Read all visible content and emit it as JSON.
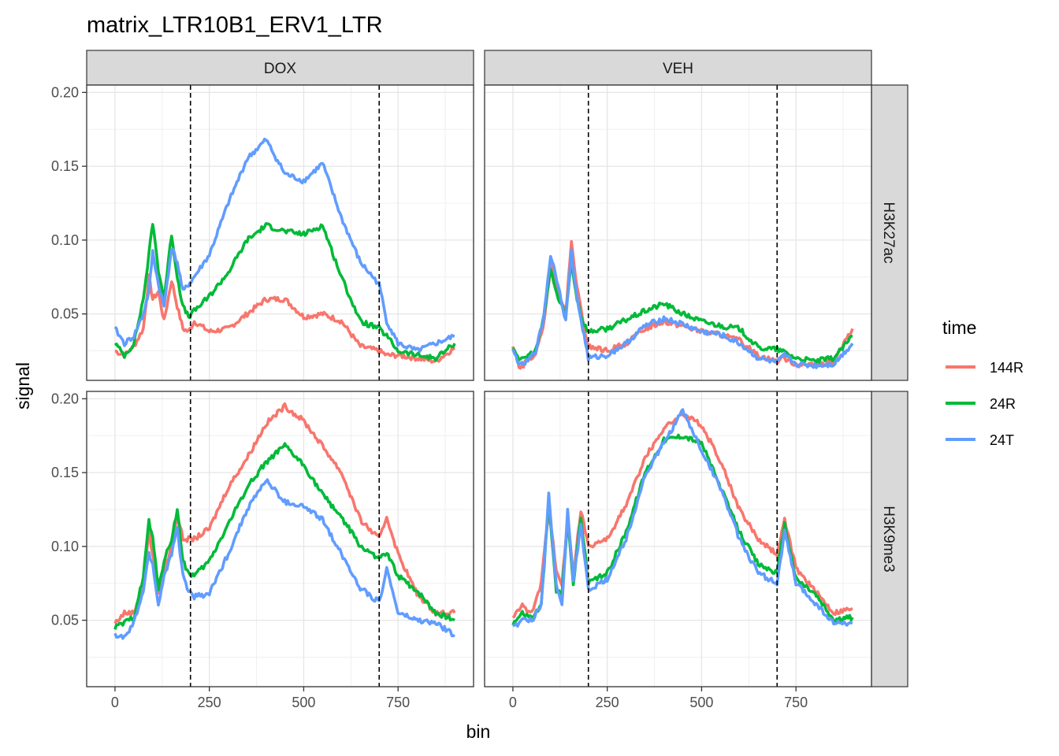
{
  "title": "matrix_LTR10B1_ERV1_LTR",
  "chart_data": {
    "type": "line",
    "title": "matrix_LTR10B1_ERV1_LTR",
    "xlabel": "bin",
    "ylabel": "signal",
    "xlim": [
      -75,
      950
    ],
    "ylim": [
      0.005,
      0.205
    ],
    "x_ticks": [
      0,
      250,
      500,
      750
    ],
    "y_ticks": [
      0.05,
      0.1,
      0.15,
      0.2
    ],
    "y_tick_labels": [
      "0.05",
      "0.10",
      "0.15",
      "0.20"
    ],
    "vlines": [
      200,
      700
    ],
    "grid": true,
    "legend": {
      "title": "time",
      "position": "right"
    },
    "columns": [
      "DOX",
      "VEH"
    ],
    "rows": [
      "H3K27ac",
      "H3K9me3"
    ],
    "series_colors": {
      "144R": "#F8766D",
      "24R": "#00BA38",
      "24T": "#619CFF"
    },
    "panels": [
      {
        "column": "DOX",
        "row": "H3K27ac",
        "series": [
          {
            "name": "144R",
            "x": [
              0,
              25,
              50,
              75,
              90,
              100,
              115,
              130,
              150,
              165,
              180,
              195,
              210,
              250,
              300,
              350,
              400,
              450,
              500,
              550,
              600,
              650,
              700,
              720,
              750,
              800,
              850,
              900
            ],
            "y": [
              0.025,
              0.022,
              0.028,
              0.04,
              0.075,
              0.06,
              0.065,
              0.045,
              0.073,
              0.055,
              0.04,
              0.038,
              0.045,
              0.038,
              0.04,
              0.05,
              0.06,
              0.06,
              0.048,
              0.05,
              0.045,
              0.028,
              0.025,
              0.022,
              0.022,
              0.02,
              0.018,
              0.027
            ]
          },
          {
            "name": "24R",
            "x": [
              0,
              25,
              50,
              75,
              90,
              100,
              115,
              130,
              150,
              165,
              180,
              195,
              210,
              250,
              300,
              350,
              400,
              450,
              500,
              550,
              600,
              650,
              700,
              720,
              750,
              800,
              850,
              900
            ],
            "y": [
              0.03,
              0.022,
              0.03,
              0.06,
              0.09,
              0.112,
              0.08,
              0.06,
              0.104,
              0.075,
              0.055,
              0.048,
              0.052,
              0.062,
              0.078,
              0.1,
              0.11,
              0.106,
              0.104,
              0.11,
              0.075,
              0.045,
              0.04,
              0.035,
              0.025,
              0.022,
              0.02,
              0.03
            ]
          },
          {
            "name": "24T",
            "x": [
              0,
              25,
              50,
              75,
              90,
              100,
              115,
              130,
              150,
              165,
              180,
              195,
              210,
              250,
              300,
              350,
              400,
              450,
              500,
              550,
              600,
              650,
              700,
              720,
              750,
              800,
              850,
              900
            ],
            "y": [
              0.04,
              0.03,
              0.035,
              0.05,
              0.065,
              0.092,
              0.07,
              0.055,
              0.095,
              0.085,
              0.065,
              0.07,
              0.075,
              0.09,
              0.125,
              0.155,
              0.168,
              0.145,
              0.14,
              0.152,
              0.115,
              0.085,
              0.07,
              0.045,
              0.03,
              0.025,
              0.03,
              0.035
            ]
          }
        ]
      },
      {
        "column": "VEH",
        "row": "H3K27ac",
        "series": [
          {
            "name": "144R",
            "x": [
              0,
              20,
              40,
              60,
              80,
              100,
              120,
              140,
              155,
              170,
              185,
              200,
              250,
              300,
              350,
              400,
              450,
              500,
              550,
              600,
              650,
              700,
              720,
              750,
              800,
              850,
              900
            ],
            "y": [
              0.028,
              0.012,
              0.02,
              0.022,
              0.04,
              0.082,
              0.065,
              0.05,
              0.098,
              0.068,
              0.045,
              0.028,
              0.025,
              0.03,
              0.04,
              0.045,
              0.042,
              0.038,
              0.036,
              0.032,
              0.022,
              0.018,
              0.02,
              0.016,
              0.015,
              0.018,
              0.04
            ]
          },
          {
            "name": "24R",
            "x": [
              0,
              20,
              40,
              60,
              80,
              100,
              120,
              140,
              155,
              170,
              185,
              200,
              250,
              300,
              350,
              400,
              450,
              500,
              550,
              600,
              650,
              700,
              720,
              750,
              800,
              850,
              900
            ],
            "y": [
              0.028,
              0.018,
              0.022,
              0.025,
              0.045,
              0.08,
              0.06,
              0.05,
              0.085,
              0.06,
              0.045,
              0.038,
              0.04,
              0.046,
              0.052,
              0.057,
              0.05,
              0.045,
              0.042,
              0.04,
              0.027,
              0.026,
              0.024,
              0.02,
              0.018,
              0.02,
              0.035
            ]
          },
          {
            "name": "24T",
            "x": [
              0,
              20,
              40,
              60,
              80,
              100,
              120,
              140,
              155,
              170,
              185,
              200,
              250,
              300,
              350,
              400,
              450,
              500,
              550,
              600,
              650,
              700,
              720,
              750,
              800,
              850,
              900
            ],
            "y": [
              0.025,
              0.015,
              0.018,
              0.025,
              0.045,
              0.09,
              0.07,
              0.045,
              0.092,
              0.06,
              0.04,
              0.02,
              0.022,
              0.03,
              0.042,
              0.047,
              0.043,
              0.038,
              0.036,
              0.03,
              0.02,
              0.017,
              0.022,
              0.016,
              0.015,
              0.016,
              0.03
            ]
          }
        ]
      },
      {
        "column": "DOX",
        "row": "H3K9me3",
        "series": [
          {
            "name": "144R",
            "x": [
              0,
              25,
              50,
              75,
              90,
              100,
              115,
              130,
              150,
              165,
              180,
              195,
              210,
              250,
              300,
              350,
              400,
              450,
              500,
              550,
              600,
              650,
              700,
              720,
              750,
              800,
              850,
              900
            ],
            "y": [
              0.048,
              0.055,
              0.055,
              0.075,
              0.11,
              0.095,
              0.068,
              0.082,
              0.1,
              0.122,
              0.105,
              0.105,
              0.105,
              0.112,
              0.14,
              0.16,
              0.183,
              0.195,
              0.185,
              0.168,
              0.15,
              0.118,
              0.105,
              0.12,
              0.095,
              0.068,
              0.055,
              0.055
            ]
          },
          {
            "name": "24R",
            "x": [
              0,
              25,
              50,
              75,
              90,
              100,
              115,
              130,
              150,
              165,
              180,
              195,
              210,
              250,
              300,
              350,
              400,
              450,
              500,
              550,
              600,
              650,
              700,
              720,
              750,
              800,
              850,
              900
            ],
            "y": [
              0.045,
              0.048,
              0.052,
              0.08,
              0.117,
              0.105,
              0.072,
              0.09,
              0.105,
              0.125,
              0.09,
              0.082,
              0.08,
              0.09,
              0.115,
              0.14,
              0.157,
              0.168,
              0.155,
              0.135,
              0.12,
              0.1,
              0.092,
              0.095,
              0.08,
              0.07,
              0.055,
              0.05
            ]
          },
          {
            "name": "24T",
            "x": [
              0,
              25,
              50,
              75,
              90,
              100,
              115,
              130,
              150,
              165,
              180,
              195,
              210,
              250,
              300,
              350,
              400,
              450,
              500,
              550,
              600,
              650,
              700,
              720,
              750,
              800,
              850,
              900
            ],
            "y": [
              0.04,
              0.038,
              0.048,
              0.07,
              0.095,
              0.088,
              0.06,
              0.08,
              0.095,
              0.112,
              0.08,
              0.07,
              0.066,
              0.068,
              0.095,
              0.125,
              0.145,
              0.13,
              0.127,
              0.118,
              0.095,
              0.072,
              0.062,
              0.085,
              0.055,
              0.05,
              0.048,
              0.04
            ]
          }
        ]
      },
      {
        "column": "VEH",
        "row": "H3K9me3",
        "series": [
          {
            "name": "144R",
            "x": [
              0,
              25,
              50,
              75,
              95,
              115,
              130,
              145,
              160,
              180,
              200,
              250,
              300,
              350,
              400,
              450,
              500,
              550,
              600,
              650,
              700,
              720,
              750,
              800,
              850,
              900
            ],
            "y": [
              0.052,
              0.06,
              0.055,
              0.075,
              0.125,
              0.085,
              0.075,
              0.12,
              0.08,
              0.125,
              0.1,
              0.105,
              0.128,
              0.16,
              0.18,
              0.19,
              0.182,
              0.158,
              0.125,
              0.105,
              0.095,
              0.118,
              0.085,
              0.07,
              0.055,
              0.058
            ]
          },
          {
            "name": "24R",
            "x": [
              0,
              25,
              50,
              75,
              95,
              115,
              130,
              145,
              160,
              180,
              200,
              250,
              300,
              350,
              400,
              450,
              500,
              550,
              600,
              650,
              700,
              720,
              750,
              800,
              850,
              900
            ],
            "y": [
              0.048,
              0.055,
              0.052,
              0.06,
              0.13,
              0.07,
              0.068,
              0.118,
              0.075,
              0.12,
              0.075,
              0.082,
              0.11,
              0.15,
              0.172,
              0.175,
              0.17,
              0.14,
              0.11,
              0.088,
              0.082,
              0.115,
              0.078,
              0.068,
              0.05,
              0.052
            ]
          },
          {
            "name": "24T",
            "x": [
              0,
              25,
              50,
              75,
              95,
              115,
              130,
              145,
              160,
              180,
              200,
              250,
              300,
              350,
              400,
              450,
              500,
              550,
              600,
              650,
              700,
              720,
              750,
              800,
              850,
              900
            ],
            "y": [
              0.045,
              0.05,
              0.05,
              0.06,
              0.135,
              0.075,
              0.06,
              0.125,
              0.075,
              0.115,
              0.07,
              0.078,
              0.105,
              0.148,
              0.17,
              0.192,
              0.165,
              0.14,
              0.105,
              0.082,
              0.075,
              0.11,
              0.075,
              0.062,
              0.048,
              0.048
            ]
          }
        ]
      }
    ]
  }
}
